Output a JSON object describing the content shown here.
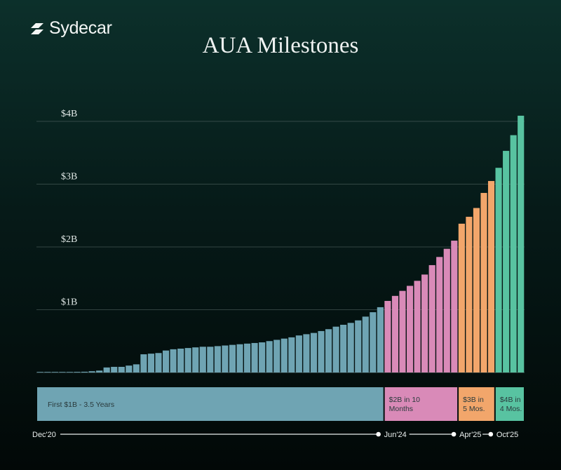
{
  "brand": {
    "name": "Sydecar",
    "logo_icon": "sydecar-slash-icon"
  },
  "chart_data": {
    "type": "bar",
    "title": "AUA Milestones",
    "ylim": [
      0,
      4.1
    ],
    "yticks": [
      {
        "value": 1,
        "label": "$1B"
      },
      {
        "value": 2,
        "label": "$2B"
      },
      {
        "value": 3,
        "label": "$3B"
      },
      {
        "value": 4,
        "label": "$4B"
      }
    ],
    "grid": true,
    "values": [
      0.003,
      0.004,
      0.005,
      0.006,
      0.008,
      0.01,
      0.012,
      0.02,
      0.03,
      0.08,
      0.09,
      0.09,
      0.11,
      0.13,
      0.29,
      0.3,
      0.31,
      0.35,
      0.37,
      0.38,
      0.39,
      0.4,
      0.41,
      0.41,
      0.42,
      0.43,
      0.44,
      0.45,
      0.46,
      0.47,
      0.48,
      0.5,
      0.52,
      0.54,
      0.56,
      0.59,
      0.61,
      0.63,
      0.66,
      0.69,
      0.73,
      0.76,
      0.79,
      0.83,
      0.89,
      0.96,
      1.04,
      1.14,
      1.22,
      1.3,
      1.38,
      1.46,
      1.56,
      1.71,
      1.84,
      1.97,
      2.1,
      2.37,
      2.48,
      2.62,
      2.86,
      3.05,
      3.26,
      3.53,
      3.78,
      4.09
    ],
    "series": [
      {
        "name": "First $1B - 3.5 Years",
        "start": 0,
        "count": 47,
        "color": "#6fa4b3"
      },
      {
        "name": "$2B in 10 Months",
        "start": 47,
        "count": 10,
        "color": "#d98ab8"
      },
      {
        "name": "$3B in 5 Mos.",
        "start": 57,
        "count": 5,
        "color": "#f2a66b"
      },
      {
        "name": "$4B in 4 Mos.",
        "start": 62,
        "count": 4,
        "color": "#58c3a1"
      }
    ],
    "milestone_bands": [
      {
        "label": "First $1B - 3.5 Years",
        "lines": [
          "First $1B - 3.5 Years"
        ],
        "color": "#6fa4b3"
      },
      {
        "label": "$2B in 10 Months",
        "lines": [
          "$2B in 10",
          "Months"
        ],
        "color": "#d98ab8"
      },
      {
        "label": "$3B in 5 Mos.",
        "lines": [
          "$3B in",
          "5 Mos."
        ],
        "color": "#f2a66b"
      },
      {
        "label": "$4B in 4 Mos.",
        "lines": [
          "$4B in",
          "4 Mos."
        ],
        "color": "#58c3a1"
      }
    ],
    "timeline": [
      "Dec'20",
      "Jun'24",
      "Apr'25",
      "Oct'25"
    ]
  }
}
